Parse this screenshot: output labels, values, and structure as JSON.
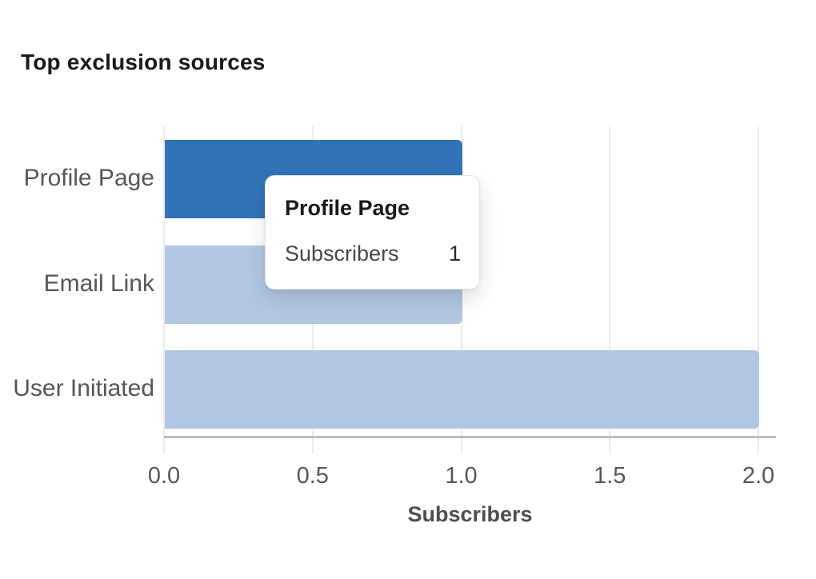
{
  "header": {
    "title": "Top exclusion sources"
  },
  "chart_data": {
    "type": "bar",
    "orientation": "horizontal",
    "title": "Top exclusion sources",
    "categories": [
      "Profile Page",
      "Email Link",
      "User Initiated"
    ],
    "values": [
      1,
      1,
      2
    ],
    "series_name": "Subscribers",
    "xlabel": "Subscribers",
    "ylabel": "",
    "xlim": [
      0,
      2
    ],
    "xticks": [
      0,
      0.5,
      1,
      1.5,
      2
    ],
    "xtick_labels": [
      "0.0",
      "0.5",
      "1.0",
      "1.5",
      "2.0"
    ],
    "grid": true,
    "legend": false,
    "highlighted_index": 0,
    "colors": {
      "bar_default": "#b2c7e4",
      "bar_highlight": "#3273b8",
      "gridline": "#ececec",
      "axis_line": "#b9bdc4",
      "title_text": "#17191c",
      "label_text": "#53565c",
      "axis_title_text": "#4a4e54"
    }
  },
  "tooltip": {
    "title": "Profile Page",
    "label": "Subscribers",
    "value": "1"
  }
}
